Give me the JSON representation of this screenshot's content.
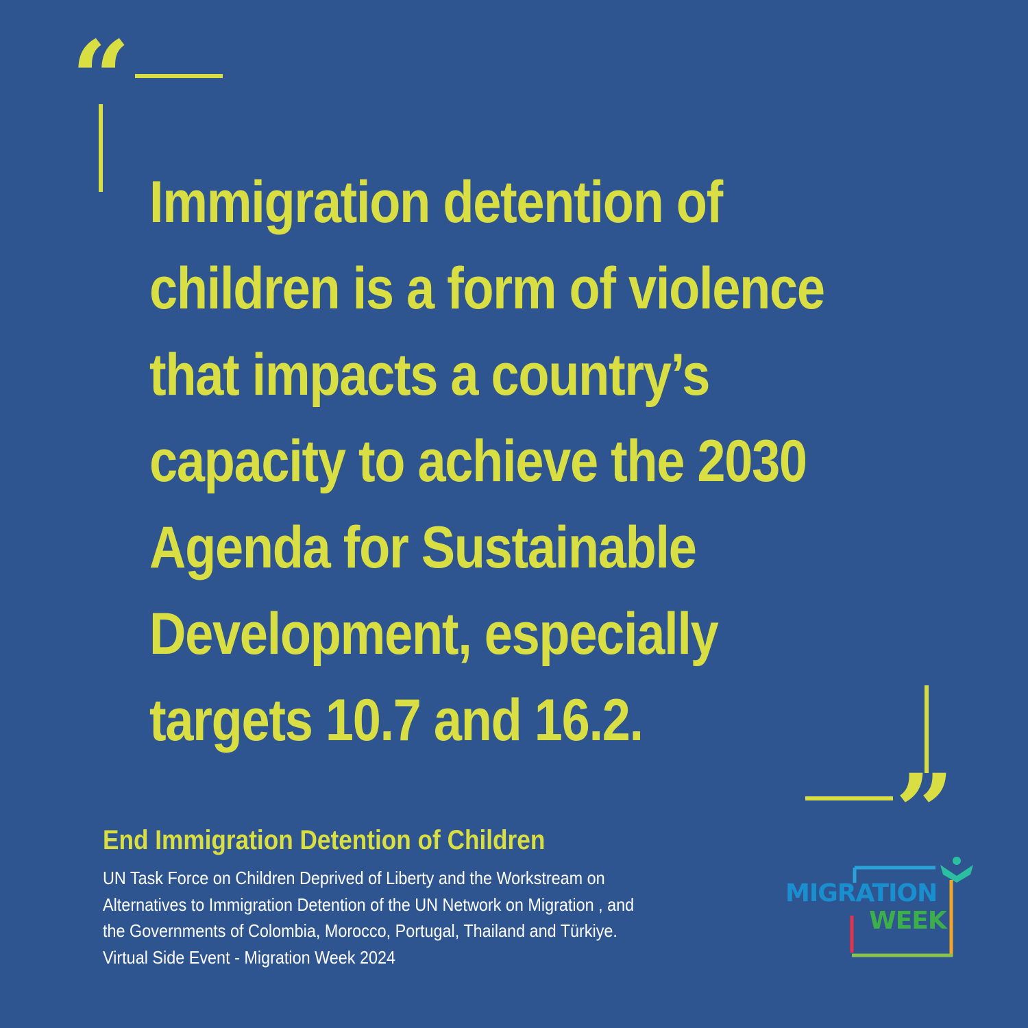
{
  "colors": {
    "background": "#2f5590",
    "accent": "#d9df43",
    "body_text": "#ffffff",
    "logo_blue": "#1a8fd0",
    "logo_green": "#3cae4a",
    "logo_red": "#e2334f",
    "logo_teal": "#2bbfa2",
    "logo_orange": "#f3a52a"
  },
  "quote": {
    "open_mark": "“",
    "close_mark": "”",
    "lines": [
      "Immigration detention of",
      "children is a form of violence",
      "that impacts a country’s",
      "capacity to achieve the 2030",
      "Agenda for Sustainable",
      "Development, especially",
      "targets 10.7 and 16.2."
    ]
  },
  "caption": {
    "title": "End Immigration Detention of Children",
    "lines": [
      "UN Task Force on Children Deprived of Liberty and the Workstream on",
      "Alternatives to Immigration Detention of the UN Network on Migration , and",
      "the Governments of Colombia, Morocco, Portugal, Thailand and Türkiye.",
      "Virtual Side Event  - Migration Week 2024"
    ]
  },
  "logo": {
    "word1": "MIGRATION",
    "word2": "WEEK"
  }
}
